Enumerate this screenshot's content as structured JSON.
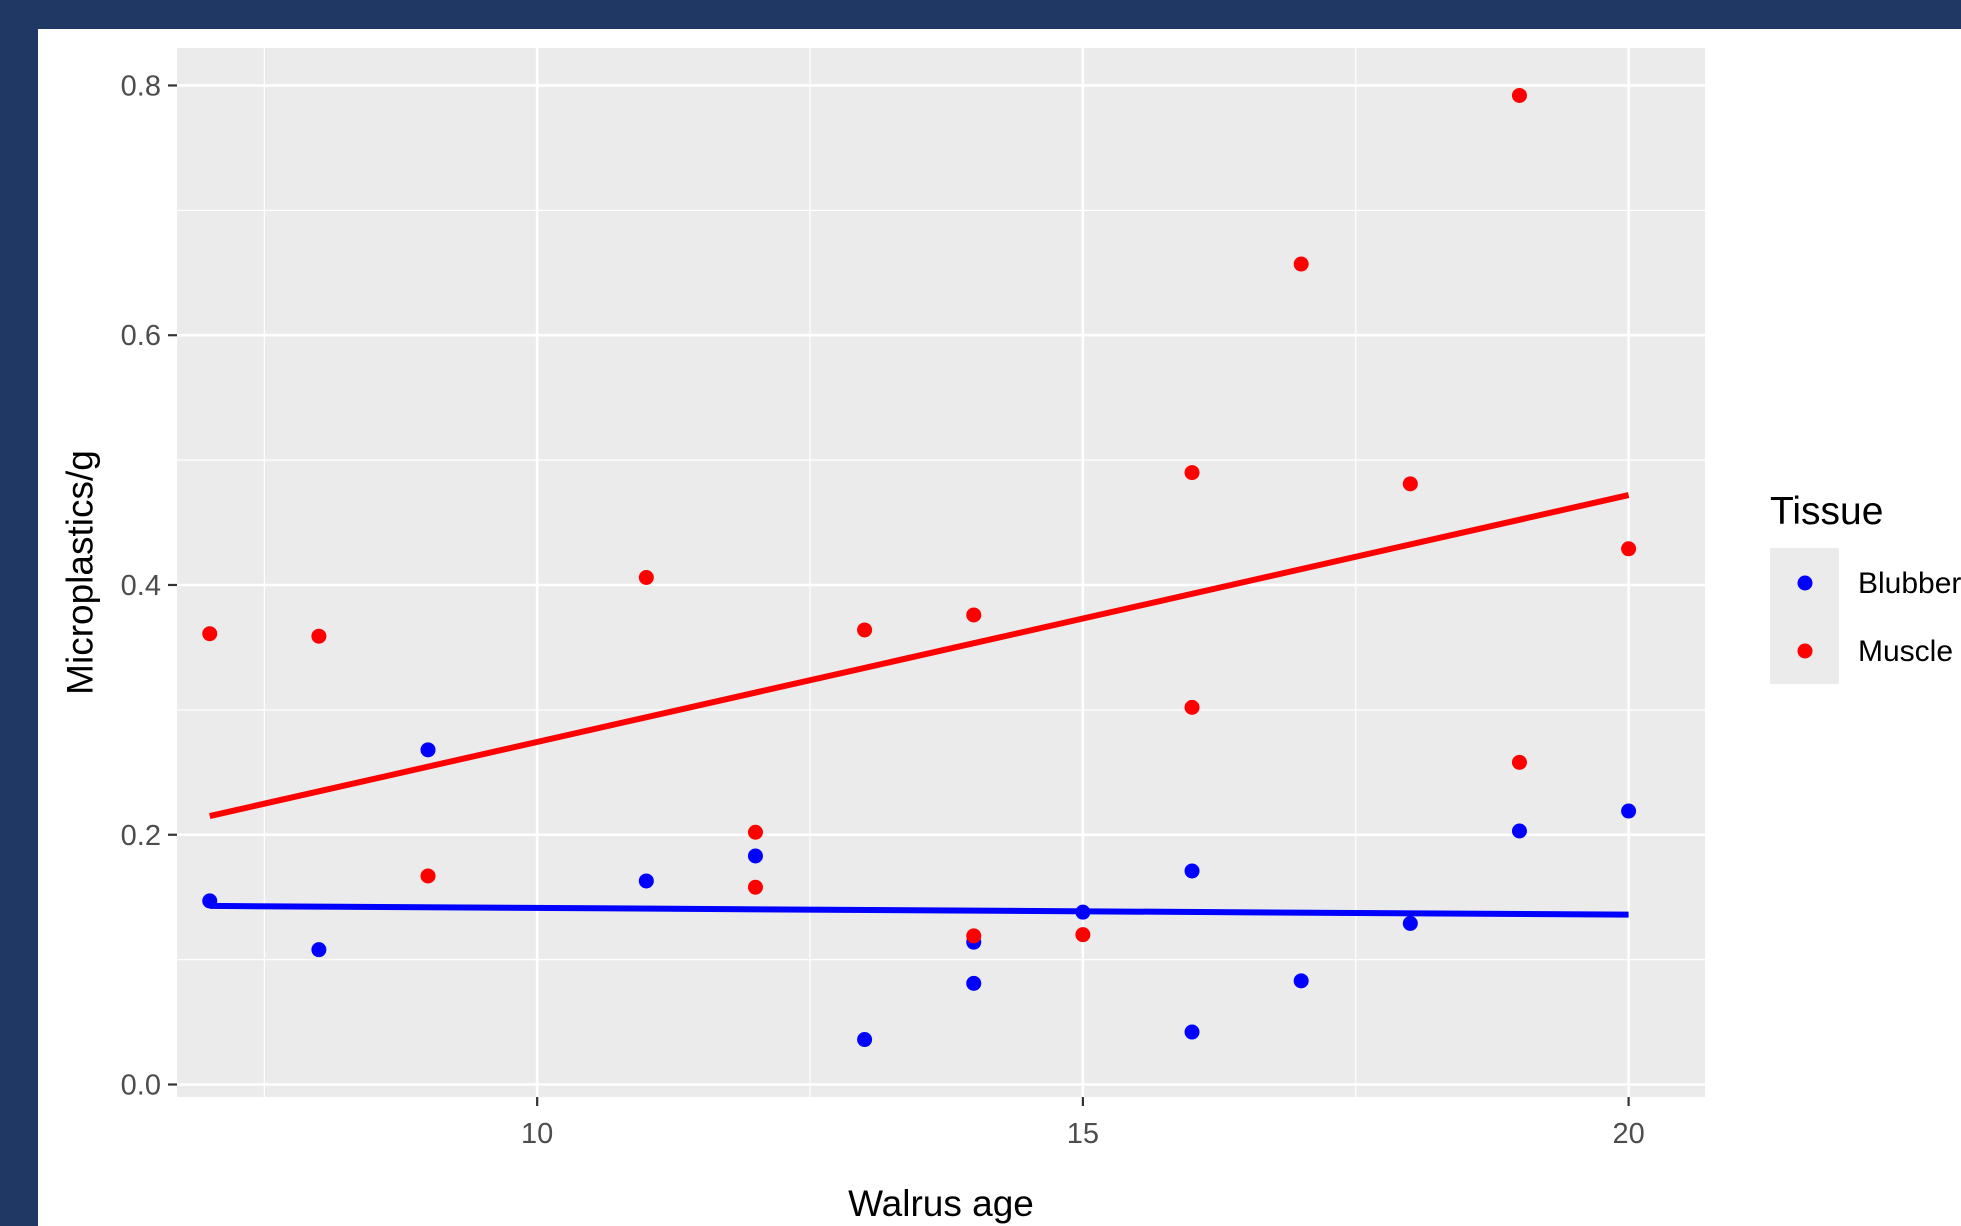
{
  "chart_data": {
    "type": "scatter",
    "title": "",
    "xlabel": "Walrus age",
    "ylabel": "Microplastics/g",
    "xlim": [
      6.7,
      20.7
    ],
    "ylim": [
      -0.01,
      0.83
    ],
    "x_ticks": [
      10,
      15,
      20
    ],
    "y_ticks": [
      0.0,
      0.2,
      0.4,
      0.6,
      0.8
    ],
    "x_tick_labels": [
      "10",
      "15",
      "20"
    ],
    "y_tick_labels": [
      "0.0",
      "0.2",
      "0.4",
      "0.6",
      "0.8"
    ],
    "grid": true,
    "legend": {
      "title": "Tissue",
      "position": "right",
      "entries": [
        "Blubber",
        "Muscle"
      ]
    },
    "series": [
      {
        "name": "Blubber",
        "color": "#0000ff",
        "points": [
          [
            7,
            0.147
          ],
          [
            8,
            0.108
          ],
          [
            9,
            0.268
          ],
          [
            11,
            0.163
          ],
          [
            12,
            0.183
          ],
          [
            13,
            0.036
          ],
          [
            14,
            0.114
          ],
          [
            14,
            0.081
          ],
          [
            15,
            0.138
          ],
          [
            16,
            0.171
          ],
          [
            16,
            0.042
          ],
          [
            17,
            0.083
          ],
          [
            18,
            0.129
          ],
          [
            19,
            0.203
          ],
          [
            20,
            0.219
          ]
        ],
        "trend": {
          "x": [
            7,
            20
          ],
          "y": [
            0.143,
            0.136
          ]
        }
      },
      {
        "name": "Muscle",
        "color": "#ff0000",
        "points": [
          [
            7,
            0.361
          ],
          [
            8,
            0.359
          ],
          [
            9,
            0.167
          ],
          [
            11,
            0.406
          ],
          [
            12,
            0.202
          ],
          [
            12,
            0.158
          ],
          [
            13,
            0.364
          ],
          [
            14,
            0.376
          ],
          [
            14,
            0.119
          ],
          [
            15,
            0.12
          ],
          [
            16,
            0.49
          ],
          [
            16,
            0.302
          ],
          [
            17,
            0.657
          ],
          [
            18,
            0.481
          ],
          [
            19,
            0.792
          ],
          [
            19,
            0.258
          ],
          [
            20,
            0.429
          ]
        ],
        "trend": {
          "x": [
            7,
            20
          ],
          "y": [
            0.215,
            0.472
          ]
        }
      }
    ]
  }
}
